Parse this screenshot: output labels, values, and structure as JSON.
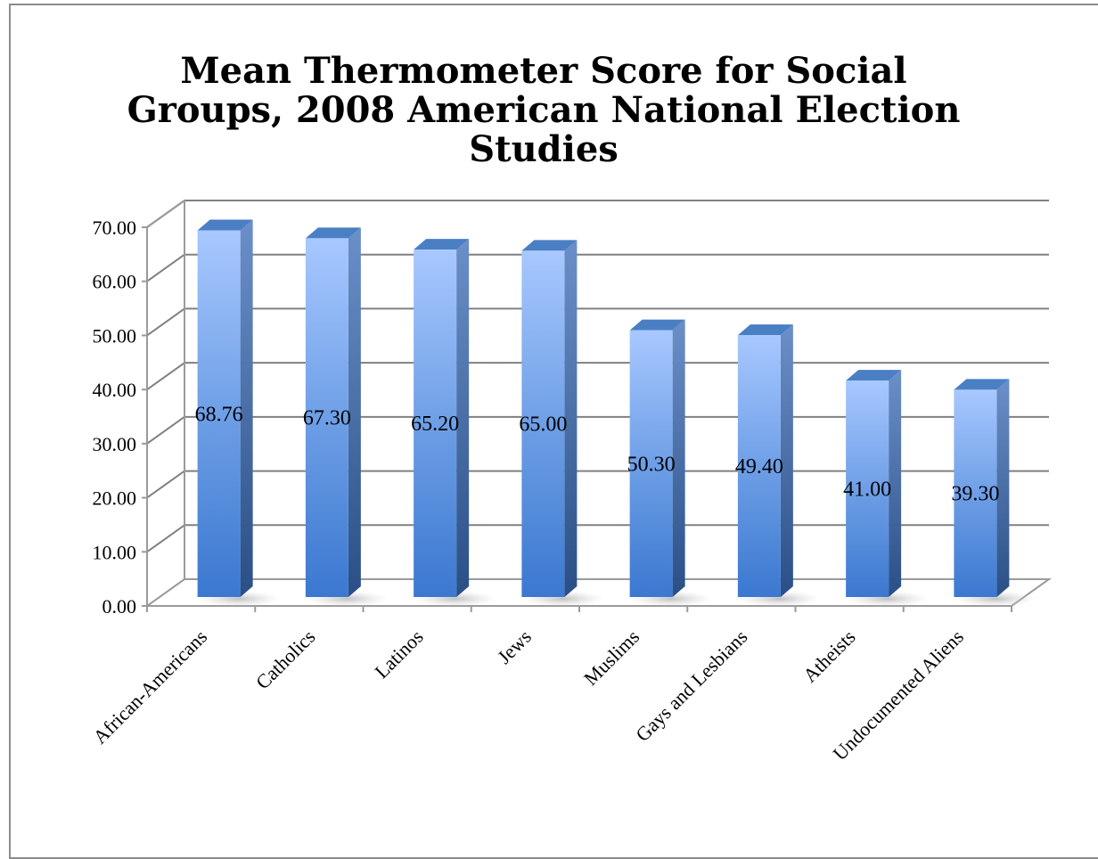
{
  "chart_data": {
    "type": "bar",
    "title_lines": [
      "Mean Thermometer Score for Social",
      "Groups, 2008 American National Election",
      "Studies"
    ],
    "categories": [
      "African-Americans",
      "Catholics",
      "Latinos",
      "Jews",
      "Muslims",
      "Gays and Lesbians",
      "Atheists",
      "Undocumented Aliens"
    ],
    "values": [
      68.76,
      67.3,
      65.2,
      65.0,
      50.3,
      49.4,
      41.0,
      39.3
    ],
    "value_labels": [
      "68.76",
      "67.30",
      "65.20",
      "65.00",
      "50.30",
      "49.40",
      "41.00",
      "39.30"
    ],
    "y_ticks": [
      "0.00",
      "10.00",
      "20.00",
      "30.00",
      "40.00",
      "50.00",
      "60.00",
      "70.00"
    ],
    "ylim": [
      0,
      70
    ],
    "grid": true,
    "legend": "none",
    "colors": {
      "bar_light": "#a8c8ff",
      "bar_dark": "#3b78d0",
      "bar_side": "#2e5a9a",
      "bar_top": "#4a7fc4",
      "grid": "#808080",
      "axis": "#9a9a9a"
    }
  }
}
